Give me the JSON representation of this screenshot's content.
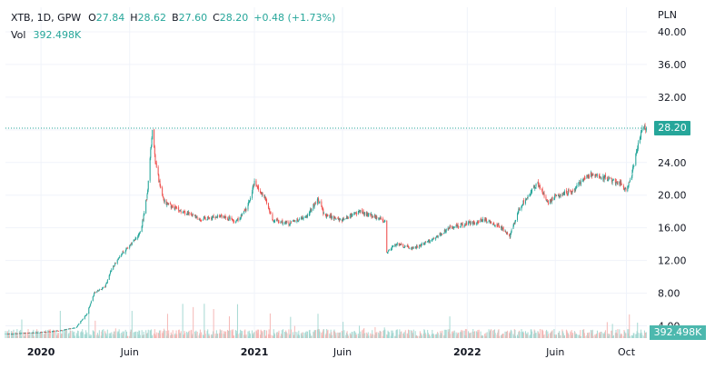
{
  "legend": {
    "symbol": "XTB, 1D, GPW",
    "open_label": "O",
    "open": "27.84",
    "high_label": "H",
    "high": "28.62",
    "low_label": "B",
    "low": "27.60",
    "close_label": "C",
    "close": "28.20",
    "change": "+0.48 (+1.73%)",
    "vol_label": "Vol",
    "vol": "392.498K"
  },
  "currency": "PLN",
  "last_price_tag": "28.20",
  "volume_tag": "392.498K",
  "colors": {
    "up": "#26a69a",
    "down": "#ef5350",
    "up_vol": "#a6d9d3",
    "down_vol": "#f5b8b6",
    "grid": "#f0f3fa",
    "axis_text": "#131722"
  },
  "chart_data": {
    "type": "candlestick",
    "y_axis": {
      "ticks": [
        4.0,
        8.0,
        12.0,
        16.0,
        20.0,
        24.0,
        28.0,
        32.0,
        36.0,
        40.0
      ],
      "tick_labels": [
        "4.00",
        "8.00",
        "12.00",
        "16.00",
        "20.00",
        "24.00",
        "28.00",
        "32.00",
        "36.00",
        "40.00"
      ],
      "range": [
        2.5,
        43.0
      ],
      "position": "right"
    },
    "x_axis": {
      "tick_labels": [
        "2020",
        "Juin",
        "2021",
        "Juin",
        "2022",
        "Juin",
        "Oct"
      ],
      "tick_dates": [
        "2020-01",
        "2020-06",
        "2021-01",
        "2021-06",
        "2022-01",
        "2022-06",
        "2022-10"
      ],
      "range": [
        "2020-01",
        "2022-11"
      ]
    },
    "last_close": 28.2,
    "price_path": [
      [
        "2019-11",
        3.0
      ],
      [
        "2020-01",
        3.2
      ],
      [
        "2020-02",
        3.4
      ],
      [
        "2020-03",
        3.8
      ],
      [
        "2020-03-20",
        5.5
      ],
      [
        "2020-04",
        8.0
      ],
      [
        "2020-04-20",
        8.8
      ],
      [
        "2020-05",
        11.0
      ],
      [
        "2020-05-20",
        13.0
      ],
      [
        "2020-06",
        13.8
      ],
      [
        "2020-06-20",
        15.5
      ],
      [
        "2020-07",
        20.0
      ],
      [
        "2020-07-10",
        28.0
      ],
      [
        "2020-07-15",
        24.0
      ],
      [
        "2020-07-25",
        20.5
      ],
      [
        "2020-08",
        19.0
      ],
      [
        "2020-09",
        18.0
      ],
      [
        "2020-10",
        17.0
      ],
      [
        "2020-11",
        17.5
      ],
      [
        "2020-12",
        16.8
      ],
      [
        "2020-12-20",
        18.5
      ],
      [
        "2021-01",
        21.5
      ],
      [
        "2021-01-20",
        19.5
      ],
      [
        "2021-02",
        17.0
      ],
      [
        "2021-03",
        16.5
      ],
      [
        "2021-04",
        17.5
      ],
      [
        "2021-04-20",
        19.5
      ],
      [
        "2021-05",
        17.5
      ],
      [
        "2021-06",
        17.0
      ],
      [
        "2021-07",
        18.0
      ],
      [
        "2021-08",
        17.2
      ],
      [
        "2021-08-15",
        16.8
      ],
      [
        "2021-08-16",
        13.0
      ],
      [
        "2021-09",
        14.0
      ],
      [
        "2021-10",
        13.5
      ],
      [
        "2021-11",
        14.5
      ],
      [
        "2021-12",
        16.0
      ],
      [
        "2022-01",
        16.5
      ],
      [
        "2022-02",
        17.0
      ],
      [
        "2022-03",
        16.0
      ],
      [
        "2022-03-15",
        15.0
      ],
      [
        "2022-04",
        18.5
      ],
      [
        "2022-05",
        21.5
      ],
      [
        "2022-05-20",
        19.0
      ],
      [
        "2022-06",
        20.0
      ],
      [
        "2022-07",
        20.5
      ],
      [
        "2022-07-20",
        22.0
      ],
      [
        "2022-08",
        22.5
      ],
      [
        "2022-09",
        22.0
      ],
      [
        "2022-09-20",
        21.5
      ],
      [
        "2022-10",
        20.5
      ],
      [
        "2022-10-10",
        22.5
      ],
      [
        "2022-10-20",
        26.0
      ],
      [
        "2022-10-28",
        28.2
      ]
    ]
  }
}
